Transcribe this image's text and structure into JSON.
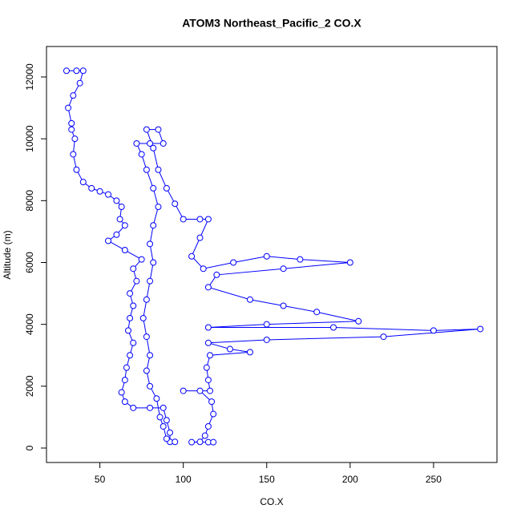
{
  "chart_data": {
    "type": "line",
    "markers": true,
    "title": "ATOM3 Northeast_Pacific_2 CO.X",
    "xlabel": "CO.X",
    "ylabel": "Altitude (m)",
    "color": "#0000ff",
    "x": [
      30,
      36,
      40,
      38,
      34,
      31,
      33,
      33,
      35,
      34,
      36,
      40,
      45,
      50,
      55,
      60,
      63,
      62,
      65,
      60,
      55,
      65,
      75,
      70,
      72,
      68,
      70,
      68,
      67,
      70,
      68,
      66,
      65,
      63,
      65,
      70,
      80,
      88,
      90,
      92,
      92,
      95,
      90,
      88,
      86,
      84,
      80,
      78,
      80,
      78,
      76,
      78,
      80,
      82,
      80,
      82,
      85,
      82,
      78,
      75,
      72,
      80,
      88,
      85,
      78,
      82,
      85,
      90,
      95,
      100,
      110,
      115,
      110,
      105,
      112,
      130,
      150,
      170,
      200,
      160,
      120,
      115,
      140,
      160,
      180,
      205,
      150,
      115,
      190,
      250,
      278,
      220,
      150,
      115,
      128,
      140,
      116,
      114,
      115,
      116,
      100,
      110,
      117,
      118,
      115,
      113,
      110,
      105,
      115,
      118
    ],
    "values": [
      12200,
      12200,
      12200,
      11800,
      11400,
      11000,
      10500,
      10300,
      10000,
      9500,
      9000,
      8600,
      8400,
      8300,
      8200,
      8000,
      7800,
      7400,
      7200,
      6900,
      6700,
      6400,
      6100,
      5800,
      5400,
      5000,
      4600,
      4200,
      3800,
      3400,
      3000,
      2600,
      2200,
      1800,
      1500,
      1300,
      1300,
      1300,
      900,
      500,
      200,
      200,
      300,
      700,
      1000,
      1600,
      2000,
      2500,
      3000,
      3600,
      4200,
      4800,
      5400,
      6000,
      6600,
      7200,
      7800,
      8400,
      9000,
      9500,
      9850,
      9850,
      9850,
      10300,
      10300,
      9700,
      9000,
      8400,
      7900,
      7400,
      7400,
      7400,
      6800,
      6200,
      5800,
      6000,
      6200,
      6100,
      6000,
      5800,
      5600,
      5200,
      4800,
      4600,
      4400,
      4100,
      4000,
      3900,
      3900,
      3800,
      3850,
      3600,
      3500,
      3400,
      3200,
      3100,
      3000,
      2600,
      2200,
      1850,
      1850,
      1850,
      1500,
      1100,
      700,
      400,
      200,
      190,
      190,
      190
    ],
    "xlim": [
      18,
      288
    ],
    "ylim": [
      -467,
      12985
    ],
    "xticks": [
      50,
      100,
      150,
      200,
      250
    ],
    "yticks": [
      0,
      2000,
      4000,
      6000,
      8000,
      10000,
      12000
    ]
  }
}
